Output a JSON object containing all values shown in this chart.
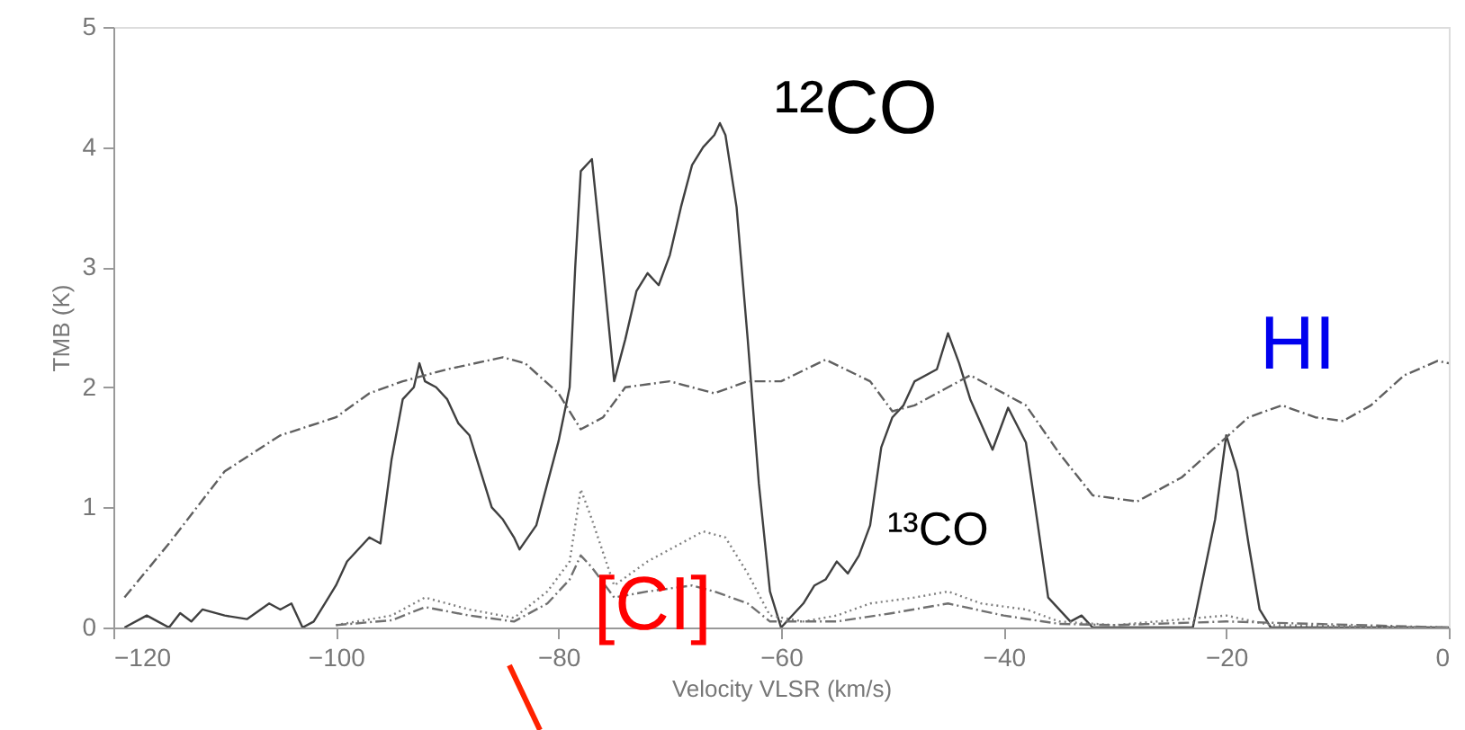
{
  "chart_data": {
    "type": "line",
    "xlabel": "Velocity VLSR (km/s)",
    "ylabel": "TMB (K)",
    "xlim": [
      -120,
      0
    ],
    "xticks": [
      -120,
      -100,
      -80,
      -60,
      -40,
      -20,
      0
    ],
    "ylim": [
      0,
      5
    ],
    "yticks": [
      0,
      1,
      2,
      3,
      4,
      5
    ],
    "grid": false,
    "annotations": [
      "¹²CO",
      "HI",
      "¹³CO",
      "[CI]"
    ],
    "series": [
      {
        "color": "#404040",
        "line_style": "solid",
        "x": [
          -119,
          -117,
          -116,
          -115,
          -114,
          -113,
          -112,
          -110,
          -108,
          -106,
          -105,
          -104,
          -103,
          -102,
          -101,
          -100,
          -99,
          -97,
          -96,
          -95,
          -94,
          -93,
          -92.5,
          -92,
          -91,
          -90,
          -89,
          -88,
          -87,
          -86,
          -85,
          -84,
          -83.5,
          -82,
          -81,
          -80,
          -79,
          -78.5,
          -78,
          -77,
          -76,
          -75,
          -74,
          -73,
          -72,
          -71,
          -70,
          -69,
          -68,
          -67,
          -66,
          -65.5,
          -65,
          -64,
          -63,
          -62,
          -61,
          -60,
          -58,
          -57,
          -56,
          -55,
          -54,
          -53,
          -52,
          -51,
          -50,
          -49,
          -48,
          -46,
          -45,
          -44,
          -43,
          -41,
          -39.6,
          -38,
          -37,
          -36,
          -34,
          -33,
          -32,
          -23,
          -21,
          -20,
          -19,
          -18,
          -17,
          -16,
          0
        ],
        "values": [
          0,
          0.1,
          0.05,
          0,
          0.12,
          0.05,
          0.15,
          0.1,
          0.07,
          0.2,
          0.15,
          0.2,
          0,
          0.05,
          0.2,
          0.35,
          0.55,
          0.75,
          0.7,
          1.4,
          1.9,
          2.0,
          2.2,
          2.05,
          2.0,
          1.9,
          1.7,
          1.6,
          1.3,
          1.0,
          0.9,
          0.75,
          0.65,
          0.85,
          1.2,
          1.55,
          2.0,
          3.0,
          3.8,
          3.9,
          3.0,
          2.05,
          2.4,
          2.8,
          2.95,
          2.85,
          3.1,
          3.5,
          3.85,
          4.0,
          4.1,
          4.2,
          4.1,
          3.5,
          2.4,
          1.2,
          0.3,
          0,
          0.2,
          0.35,
          0.4,
          0.55,
          0.45,
          0.6,
          0.85,
          1.5,
          1.75,
          1.85,
          2.05,
          2.15,
          2.45,
          2.2,
          1.9,
          1.48,
          1.83,
          1.54,
          0.9,
          0.25,
          0.05,
          0.1,
          0,
          0,
          0.9,
          1.6,
          1.3,
          0.7,
          0.15,
          0,
          0
        ]
      },
      {
        "color": "#606060",
        "line_style": "dashed",
        "x": [
          -119,
          -115,
          -110,
          -105,
          -100,
          -97,
          -94,
          -90,
          -85,
          -83,
          -80,
          -78,
          -76,
          -74,
          -70,
          -66,
          -63,
          -60,
          -56,
          -52,
          -50,
          -48,
          -45,
          -43,
          -38,
          -35,
          -32,
          -28,
          -24,
          -21,
          -18,
          -15,
          -12,
          -9.5,
          -7,
          -4,
          -1,
          0
        ],
        "values": [
          0.25,
          0.7,
          1.3,
          1.6,
          1.75,
          1.95,
          2.05,
          2.15,
          2.25,
          2.2,
          1.95,
          1.65,
          1.75,
          2.0,
          2.05,
          1.95,
          2.05,
          2.05,
          2.23,
          2.05,
          1.8,
          1.85,
          2.0,
          2.1,
          1.85,
          1.45,
          1.1,
          1.05,
          1.25,
          1.5,
          1.75,
          1.85,
          1.75,
          1.72,
          1.85,
          2.1,
          2.22,
          2.2
        ]
      },
      {
        "color": "#808080",
        "line_style": "dotted",
        "x": [
          -100,
          -95,
          -92,
          -88,
          -84,
          -81,
          -79,
          -78,
          -77,
          -75,
          -72,
          -69,
          -67,
          -65,
          -63,
          -61,
          -58,
          -55,
          -52,
          -48,
          -45,
          -42,
          -38,
          -35,
          -30,
          -20,
          -16,
          0
        ],
        "values": [
          0.02,
          0.1,
          0.25,
          0.15,
          0.08,
          0.3,
          0.55,
          1.15,
          0.9,
          0.35,
          0.55,
          0.7,
          0.8,
          0.75,
          0.45,
          0.1,
          0.05,
          0.1,
          0.2,
          0.25,
          0.3,
          0.2,
          0.15,
          0.05,
          0.02,
          0.1,
          0.02,
          0
        ]
      },
      {
        "color": "#707070",
        "line_style": "dashed",
        "x": [
          -100,
          -95,
          -92,
          -88,
          -84,
          -81,
          -79,
          -78,
          -77,
          -75,
          -72,
          -68,
          -66,
          -63,
          -61,
          -55,
          -50,
          -45,
          -40,
          -35,
          -30,
          -20,
          0
        ],
        "values": [
          0.02,
          0.06,
          0.17,
          0.1,
          0.05,
          0.2,
          0.4,
          0.6,
          0.5,
          0.25,
          0.3,
          0.35,
          0.3,
          0.2,
          0.05,
          0.05,
          0.12,
          0.2,
          0.1,
          0.03,
          0.02,
          0.05,
          0
        ]
      }
    ]
  }
}
